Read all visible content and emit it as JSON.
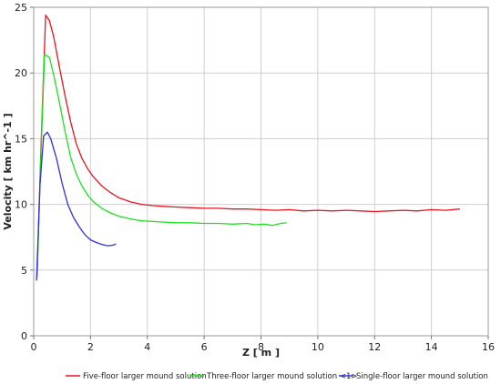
{
  "chart_data": {
    "type": "line",
    "xlabel": "Z [ m ]",
    "ylabel": "Velocity [ km hr^-1 ]",
    "xlim": [
      0,
      16
    ],
    "ylim": [
      0,
      25
    ],
    "xticks": [
      0,
      2,
      4,
      6,
      8,
      10,
      12,
      14,
      16
    ],
    "yticks": [
      0,
      5,
      10,
      15,
      20,
      25
    ],
    "grid": true,
    "legend_position": "bottom",
    "series": [
      {
        "name": "Five-floor larger mound solution",
        "color": "#e8141c",
        "x": [
          0.12,
          0.25,
          0.42,
          0.55,
          0.7,
          0.9,
          1.1,
          1.3,
          1.5,
          1.7,
          1.9,
          2.1,
          2.4,
          2.7,
          3.0,
          3.4,
          3.8,
          4.2,
          4.6,
          5.0,
          5.5,
          6.0,
          6.5,
          7.0,
          7.5,
          8.0,
          8.5,
          9.0,
          9.5,
          10.0,
          10.5,
          11.0,
          11.5,
          12.0,
          12.5,
          13.0,
          13.5,
          14.0,
          14.5,
          15.0
        ],
        "y": [
          4.5,
          14.0,
          24.4,
          24.0,
          22.8,
          20.5,
          18.3,
          16.3,
          14.6,
          13.5,
          12.7,
          12.1,
          11.4,
          10.9,
          10.5,
          10.2,
          10.0,
          9.9,
          9.85,
          9.8,
          9.75,
          9.7,
          9.7,
          9.65,
          9.65,
          9.6,
          9.55,
          9.6,
          9.5,
          9.55,
          9.5,
          9.55,
          9.5,
          9.45,
          9.5,
          9.55,
          9.5,
          9.6,
          9.55,
          9.65
        ]
      },
      {
        "name": "Three-floor larger mound solution <1>",
        "color": "#1ee01e",
        "x": [
          0.12,
          0.25,
          0.38,
          0.55,
          0.7,
          0.9,
          1.1,
          1.3,
          1.5,
          1.7,
          1.9,
          2.1,
          2.4,
          2.7,
          3.0,
          3.4,
          3.8,
          4.2,
          4.6,
          5.0,
          5.5,
          6.0,
          6.5,
          7.0,
          7.5,
          7.8,
          8.1,
          8.4,
          8.7,
          8.9
        ],
        "y": [
          4.5,
          13.5,
          21.4,
          21.2,
          19.9,
          17.8,
          15.6,
          13.6,
          12.3,
          11.4,
          10.7,
          10.2,
          9.7,
          9.35,
          9.1,
          8.9,
          8.75,
          8.7,
          8.65,
          8.6,
          8.6,
          8.55,
          8.55,
          8.5,
          8.55,
          8.45,
          8.5,
          8.4,
          8.55,
          8.6
        ]
      },
      {
        "name": "Single-floor larger mound solution",
        "color": "#3030e0",
        "x": [
          0.1,
          0.22,
          0.35,
          0.48,
          0.6,
          0.8,
          1.0,
          1.2,
          1.4,
          1.6,
          1.8,
          2.0,
          2.2,
          2.4,
          2.6,
          2.8,
          2.9
        ],
        "y": [
          4.2,
          11.5,
          15.2,
          15.5,
          15.0,
          13.5,
          11.6,
          10.0,
          9.0,
          8.3,
          7.7,
          7.3,
          7.1,
          6.95,
          6.85,
          6.9,
          7.0
        ]
      }
    ]
  }
}
